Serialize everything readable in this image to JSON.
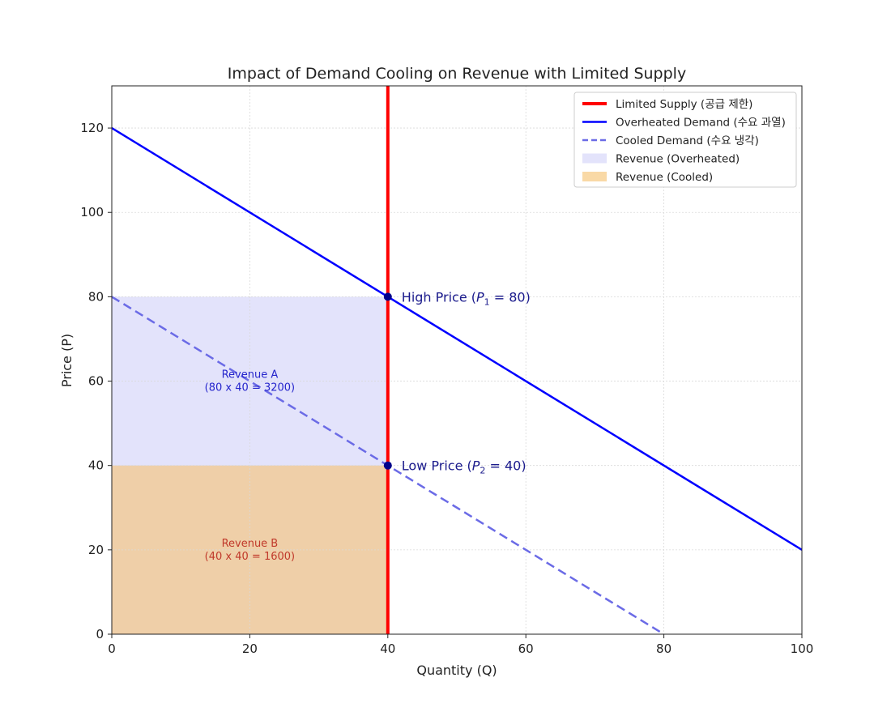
{
  "chart_data": {
    "type": "line",
    "title": "Impact of Demand Cooling on Revenue with Limited Supply",
    "xlabel": "Quantity (Q)",
    "ylabel": "Price (P)",
    "xlim": [
      0,
      100
    ],
    "ylim": [
      0,
      130
    ],
    "xticks": [
      0,
      20,
      40,
      60,
      80,
      100
    ],
    "yticks": [
      0,
      20,
      40,
      60,
      80,
      100,
      120
    ],
    "grid": true,
    "legend_position": "top-right",
    "series": [
      {
        "name": "Limited Supply (공급 제한)",
        "style": "solid-thick",
        "color": "#ff0000",
        "x": [
          40,
          40
        ],
        "y": [
          0,
          130
        ]
      },
      {
        "name": "Overheated Demand (수요 과열)",
        "style": "solid",
        "color": "#0000ff",
        "x": [
          0,
          100
        ],
        "y": [
          120,
          20
        ]
      },
      {
        "name": "Cooled Demand (수요 냉각)",
        "style": "dashed",
        "color": "#6b6be6",
        "x": [
          0,
          80
        ],
        "y": [
          80,
          0
        ]
      }
    ],
    "regions": [
      {
        "name": "Revenue (Overheated)",
        "color": "#e3e3fb",
        "x": [
          0,
          40
        ],
        "y": [
          0,
          80
        ]
      },
      {
        "name": "Revenue (Cooled)",
        "color": "#efcfa8",
        "x": [
          0,
          40
        ],
        "y": [
          0,
          40
        ]
      }
    ],
    "points": [
      {
        "x": 40,
        "y": 80,
        "label_prefix": "High Price (",
        "label_var": "P",
        "label_sub": "1",
        "label_suffix": " = 80)"
      },
      {
        "x": 40,
        "y": 40,
        "label_prefix": "Low Price (",
        "label_var": "P",
        "label_sub": "2",
        "label_suffix": " = 40)"
      }
    ],
    "annotations": [
      {
        "x": 20,
        "y": 60,
        "lines": [
          "Revenue A",
          "(80 x 40 = 3200)"
        ],
        "color": "#2626cc"
      },
      {
        "x": 20,
        "y": 20,
        "lines": [
          "Revenue B",
          "(40 x 40 = 1600)"
        ],
        "color": "#c0392b"
      }
    ],
    "legend": [
      {
        "label": "Limited Supply (공급 제한)",
        "kind": "line",
        "color": "#ff0000",
        "dash": false,
        "thick": true
      },
      {
        "label": "Overheated Demand (수요 과열)",
        "kind": "line",
        "color": "#0000ff",
        "dash": false,
        "thick": false
      },
      {
        "label": "Cooled Demand (수요 냉각)",
        "kind": "line",
        "color": "#6b6be6",
        "dash": true,
        "thick": false
      },
      {
        "label": "Revenue (Overheated)",
        "kind": "patch",
        "color": "#e3e3fb"
      },
      {
        "label": "Revenue (Cooled)",
        "kind": "patch",
        "color": "#f9d9a6"
      }
    ]
  }
}
